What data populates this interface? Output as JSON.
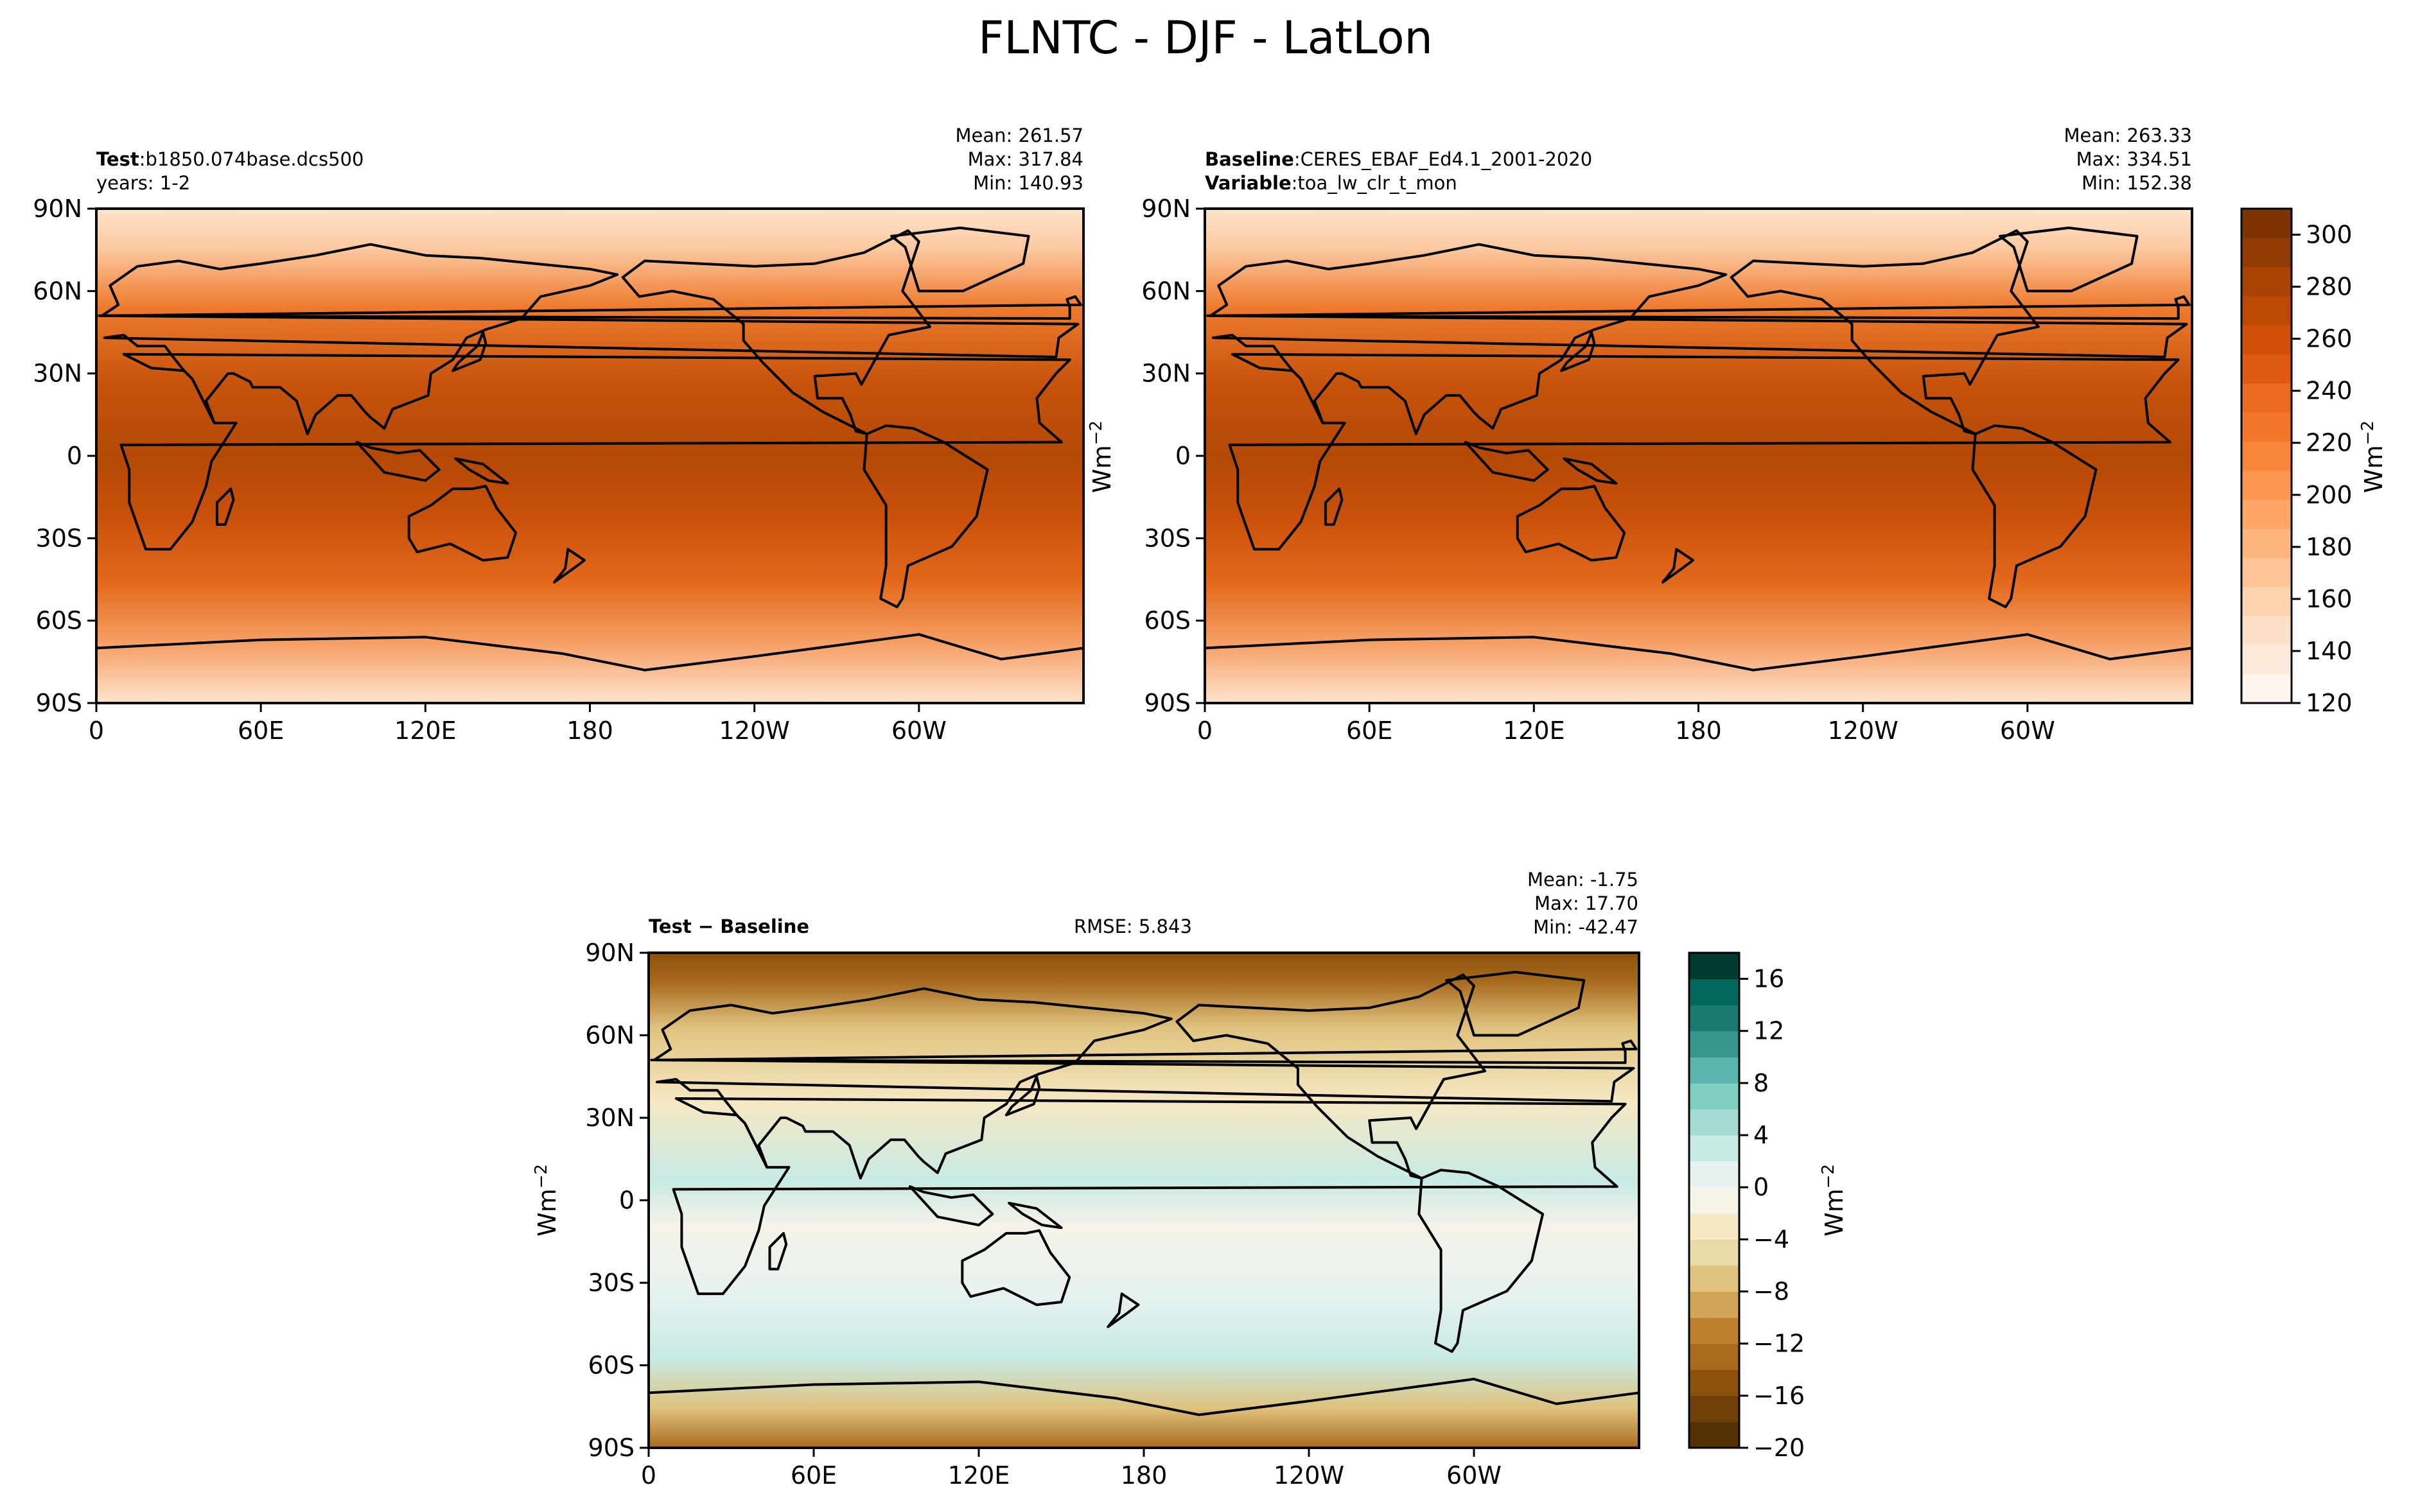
{
  "title": "FLNTC - DJF - LatLon",
  "panels": {
    "test": {
      "label_bold": "Test",
      "label_sep": ":",
      "label_value": "b1850.074base.dcs500",
      "line2": "years: 1-2",
      "mean": "Mean: 261.57",
      "max": "Max: 317.84",
      "min": "Min: 140.93"
    },
    "baseline": {
      "label_bold": "Baseline",
      "label_sep": ":",
      "label_value": "CERES_EBAF_Ed4.1_2001-2020",
      "var_bold": "Variable",
      "var_sep": ":",
      "var_value": "toa_lw_clr_t_mon",
      "mean": "Mean: 263.33",
      "max": "Max: 334.51",
      "min": "Min: 152.38"
    },
    "diff": {
      "label": "Test − Baseline",
      "rmse": "RMSE: 5.843",
      "mean": "Mean: -1.75",
      "max": "Max: 17.70",
      "min": "Min: -42.47"
    }
  },
  "axes": {
    "lon_ticks": [
      "0",
      "60E",
      "120E",
      "180",
      "120W",
      "60W"
    ],
    "lat_ticks": [
      "90N",
      "60N",
      "30N",
      "0",
      "30S",
      "60S",
      "90S"
    ],
    "units_label": "Wm",
    "units_exp": "−2"
  },
  "colorbars": {
    "main": {
      "ticks": [
        "120",
        "140",
        "160",
        "180",
        "200",
        "220",
        "240",
        "260",
        "280",
        "300"
      ],
      "range": [
        120,
        310
      ],
      "colors": [
        "#fef6ee",
        "#fdeadb",
        "#fde0c8",
        "#fdd3b0",
        "#fdc597",
        "#fdb47d",
        "#fda665",
        "#fd974f",
        "#f8873c",
        "#f2772b",
        "#ea6a1f",
        "#de5b0f",
        "#d04f09",
        "#bc4a05",
        "#a94304",
        "#933b04",
        "#7f3303"
      ]
    },
    "diff": {
      "ticks": [
        "16",
        "12",
        "8",
        "4",
        "0",
        "−4",
        "−8",
        "−12",
        "−16",
        "−20"
      ],
      "range": [
        -20,
        18
      ],
      "colors": [
        "#543005",
        "#6f3f08",
        "#8c510a",
        "#a86b1e",
        "#bf812d",
        "#d1a558",
        "#dfc27d",
        "#eadaa8",
        "#f6e8c3",
        "#f5f2e8",
        "#e8f2f0",
        "#c7eae5",
        "#a4dad2",
        "#80cdc1",
        "#5ab4ab",
        "#35978f",
        "#1a7a71",
        "#01665e",
        "#003c30"
      ]
    }
  },
  "chart_data": [
    {
      "type": "heatmap",
      "title": "Test: b1850.074base.dcs500",
      "subtitle": "years: 1-2",
      "stats": {
        "mean": 261.57,
        "max": 317.84,
        "min": 140.93
      },
      "x_ticks": [
        "0",
        "60E",
        "120E",
        "180",
        "120W",
        "60W"
      ],
      "y_ticks": [
        "90N",
        "60N",
        "30N",
        "0",
        "30S",
        "60S",
        "90S"
      ],
      "xlim": [
        0,
        360
      ],
      "ylim": [
        -90,
        90
      ],
      "colorbar": {
        "label": "Wm−2",
        "range": [
          120,
          310
        ],
        "step": 10
      }
    },
    {
      "type": "heatmap",
      "title": "Baseline: CERES_EBAF_Ed4.1_2001-2020",
      "subtitle": "Variable: toa_lw_clr_t_mon",
      "stats": {
        "mean": 263.33,
        "max": 334.51,
        "min": 152.38
      },
      "x_ticks": [
        "0",
        "60E",
        "120E",
        "180",
        "120W",
        "60W"
      ],
      "y_ticks": [
        "90N",
        "60N",
        "30N",
        "0",
        "30S",
        "60S",
        "90S"
      ],
      "xlim": [
        0,
        360
      ],
      "ylim": [
        -90,
        90
      ],
      "colorbar": {
        "label": "Wm−2",
        "range": [
          120,
          310
        ],
        "step": 10
      }
    },
    {
      "type": "heatmap",
      "title": "Test − Baseline",
      "rmse": 5.843,
      "stats": {
        "mean": -1.75,
        "max": 17.7,
        "min": -42.47
      },
      "x_ticks": [
        "0",
        "60E",
        "120E",
        "180",
        "120W",
        "60W"
      ],
      "y_ticks": [
        "90N",
        "60N",
        "30N",
        "0",
        "30S",
        "60S",
        "90S"
      ],
      "xlim": [
        0,
        360
      ],
      "ylim": [
        -90,
        90
      ],
      "colorbar": {
        "label": "Wm−2",
        "range": [
          -20,
          18
        ],
        "step": 2
      }
    }
  ]
}
